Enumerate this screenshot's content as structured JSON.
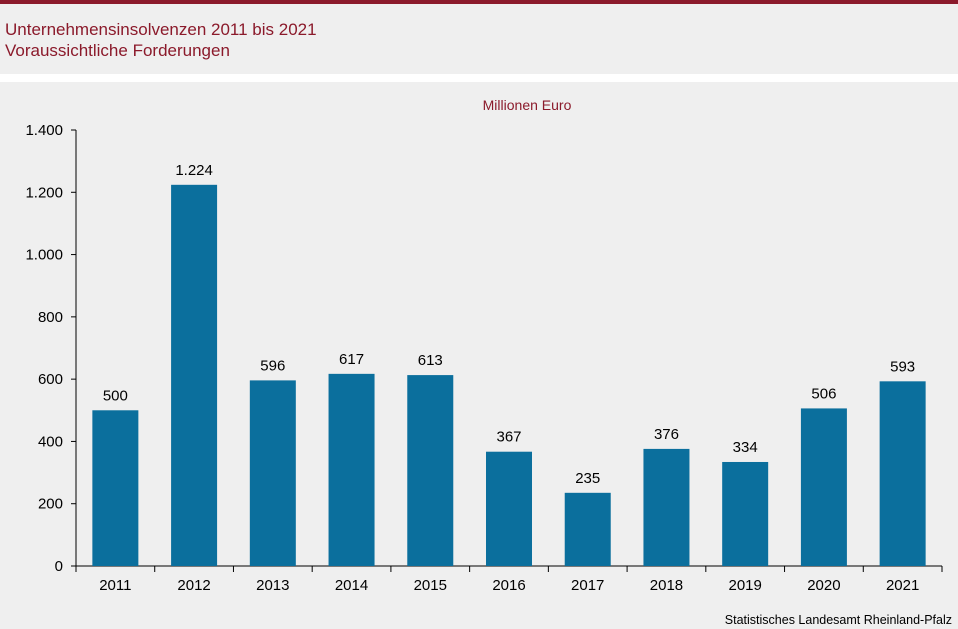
{
  "header": {
    "title_line1": "Unternehmensinsolvenzen 2011 bis 2021",
    "title_line2": "Voraussichtliche Forderungen"
  },
  "colors": {
    "accent": "#8b1a2b",
    "bar": "#0b6f9d",
    "panel": "#efefef"
  },
  "chart_data": {
    "type": "bar",
    "title": "Unternehmensinsolvenzen 2011 bis 2021",
    "subtitle": "Voraussichtliche Forderungen",
    "unit_label": "Millionen Euro",
    "categories": [
      "2011",
      "2012",
      "2013",
      "2014",
      "2015",
      "2016",
      "2017",
      "2018",
      "2019",
      "2020",
      "2021"
    ],
    "values": [
      500,
      1224,
      596,
      617,
      613,
      367,
      235,
      376,
      334,
      506,
      593
    ],
    "value_labels": [
      "500",
      "1.224",
      "596",
      "617",
      "613",
      "367",
      "235",
      "376",
      "334",
      "506",
      "593"
    ],
    "y_ticks": [
      0,
      200,
      400,
      600,
      800,
      1000,
      1200,
      1400
    ],
    "y_tick_labels": [
      "0",
      "200",
      "400",
      "600",
      "800",
      "1.000",
      "1.200",
      "1.400"
    ],
    "ylim": [
      0,
      1400
    ],
    "grid": false,
    "xlabel": "",
    "ylabel": ""
  },
  "footer": {
    "source": "Statistisches Landesamt Rheinland-Pfalz"
  }
}
